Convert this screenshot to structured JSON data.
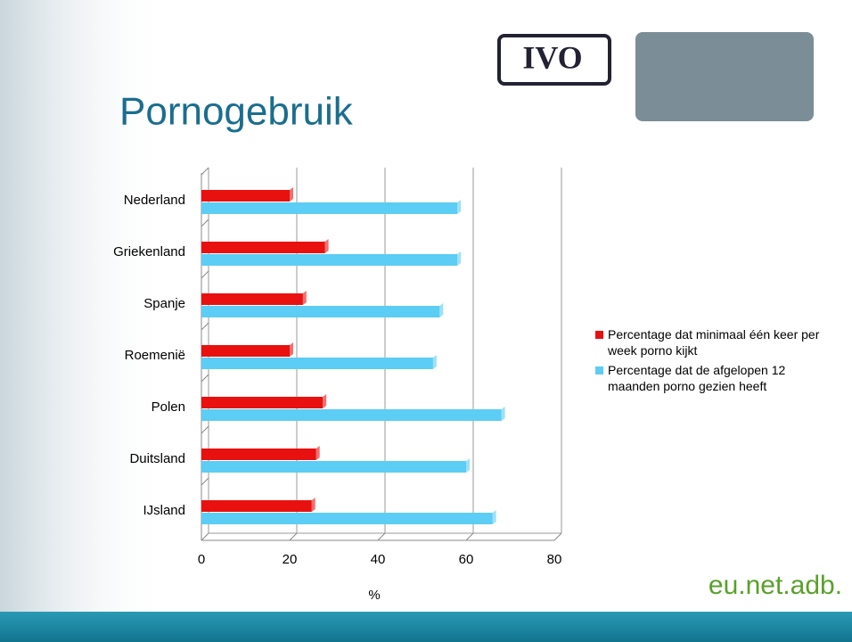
{
  "chart_data": {
    "type": "hbar",
    "title": "Pornogebruik",
    "categories": [
      "Nederland",
      "Griekenland",
      "Spanje",
      "Roemenië",
      "Polen",
      "Duitsland",
      "IJsland"
    ],
    "series": [
      {
        "name": "Percentage dat minimaal één keer per week porno kijkt",
        "color": "#e8110f",
        "values": [
          20,
          28,
          23,
          20,
          27.5,
          26,
          25
        ]
      },
      {
        "name": "Percentage dat de afgelopen 12 maanden porno gezien heeft",
        "color": "#5ccdf4",
        "values": [
          58,
          58,
          54,
          52.5,
          68,
          60,
          66
        ]
      }
    ],
    "xlabel": "%",
    "xlim": [
      0,
      80
    ],
    "xticks": [
      0,
      20,
      40,
      60,
      80
    ],
    "grid": true,
    "legend": "right"
  },
  "logos": [
    "IVO",
    "eu.net.adb."
  ]
}
